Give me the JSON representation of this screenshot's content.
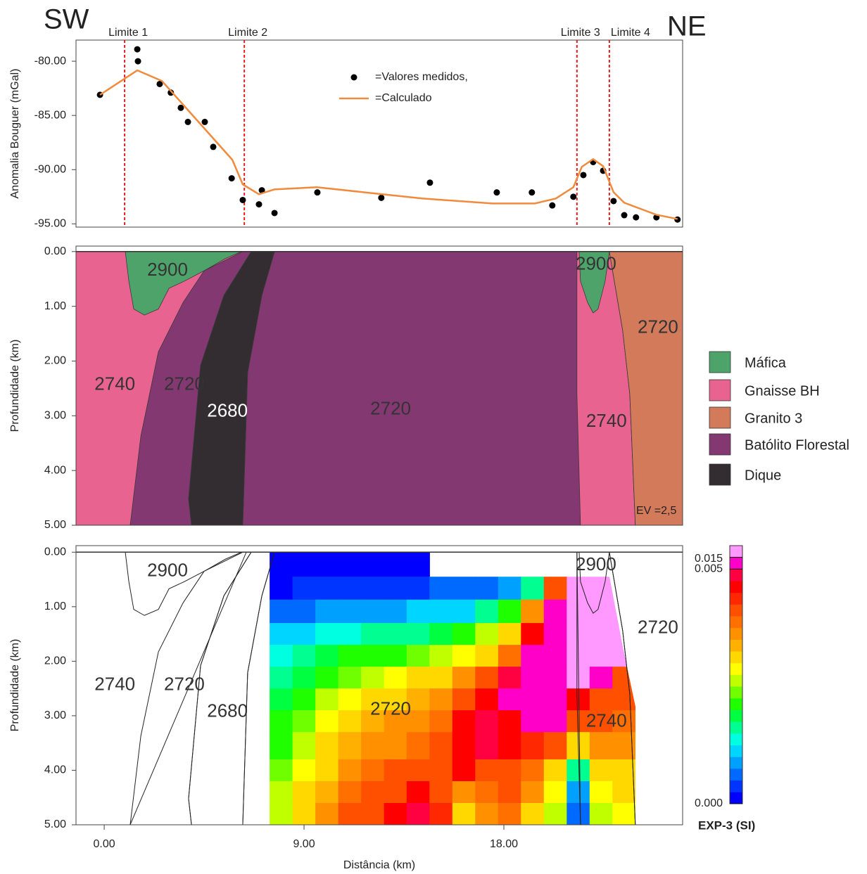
{
  "chart_data": [
    {
      "type": "line",
      "left_label": "SW",
      "right_label": "NE",
      "ylabel": "Anomalia Bouguer (mGal)",
      "xlim": [
        -1.27,
        26.05
      ],
      "ylim": [
        -95.3,
        -78.05
      ],
      "yticks": [
        {
          "value": -80,
          "label": "-80.00"
        },
        {
          "value": -85,
          "label": "-85.00"
        },
        {
          "value": -90,
          "label": "-90.00"
        },
        {
          "value": -95,
          "label": "-95.00"
        }
      ],
      "limits": [
        {
          "label": "Limite 1",
          "x": 0.92
        },
        {
          "label": "Limite 2",
          "x": 6.31
        },
        {
          "label": "Limite 3",
          "x": 21.29
        },
        {
          "label": "Limite 4",
          "x": 22.75
        }
      ],
      "limit_color": "#e0201f",
      "series": [
        {
          "name": "=Valores medidos,",
          "color": "#000000",
          "style": "points",
          "x": [
            -0.19,
            1.49,
            1.52,
            2.5,
            3.0,
            3.45,
            3.77,
            4.53,
            4.91,
            5.74,
            6.24,
            6.97,
            7.1,
            7.67,
            9.6,
            12.48,
            14.67,
            17.68,
            19.26,
            20.18,
            21.13,
            21.58,
            22.02,
            22.47,
            22.94,
            23.42,
            23.95,
            24.87,
            25.82
          ],
          "values": [
            -83.1,
            -78.9,
            -80.0,
            -82.1,
            -82.9,
            -84.3,
            -85.6,
            -85.6,
            -87.9,
            -90.8,
            -92.8,
            -93.2,
            -91.9,
            -94.0,
            -92.1,
            -92.6,
            -91.2,
            -92.1,
            -92.1,
            -93.3,
            -92.5,
            -90.5,
            -89.3,
            -90.1,
            -92.9,
            -94.2,
            -94.4,
            -94.4,
            -94.6
          ]
        },
        {
          "name": "=Calculado",
          "color": "#f08a3c",
          "style": "line",
          "x": [
            -0.19,
            1.49,
            2.6,
            5.77,
            6.24,
            6.97,
            7.67,
            9.57,
            14.32,
            17.49,
            19.39,
            20.34,
            21.13,
            21.51,
            22.02,
            22.47,
            22.94,
            23.42,
            24.87,
            25.82
          ],
          "values": [
            -83.1,
            -80.84,
            -81.82,
            -89.09,
            -91.36,
            -92.27,
            -91.82,
            -91.62,
            -92.66,
            -93.12,
            -93.12,
            -92.66,
            -91.62,
            -89.74,
            -89.03,
            -89.68,
            -92.08,
            -93.05,
            -94.16,
            -94.55
          ]
        }
      ]
    },
    {
      "type": "section",
      "ylabel": "Profundidade (km)",
      "xlim": [
        -1.27,
        26.05
      ],
      "ylim": [
        -0.1,
        5
      ],
      "y_inverted": true,
      "zero_line": true,
      "yticks": [
        {
          "value": 0,
          "label": "0.00"
        },
        {
          "value": 1,
          "label": "1.00"
        },
        {
          "value": 2,
          "label": "2.00"
        },
        {
          "value": 3,
          "label": "3.00"
        },
        {
          "value": 4,
          "label": "4.00"
        },
        {
          "value": 5,
          "label": "5.00"
        }
      ],
      "note": "EV =2,5",
      "units": [
        {
          "name": "Máfica",
          "color": "#4ea36a"
        },
        {
          "name": "Gnaisse BH",
          "color": "#e8638f"
        },
        {
          "name": "Granito 3",
          "color": "#d27a5a"
        },
        {
          "name": "Batólito Florestal",
          "color": "#843872"
        },
        {
          "name": "Dique",
          "color": "#332d31"
        }
      ],
      "bodies": [
        {
          "density": 2740,
          "color": "#e8638f",
          "x": [
            -1.27,
            6.4,
            1.17,
            -1.27
          ],
          "depth": [
            0,
            0,
            5,
            5
          ]
        },
        {
          "density": 2720,
          "color": "#843872",
          "x": [
            4.5,
            6.24,
            6.62,
            5.39,
            4.34,
            3.8,
            3.93,
            1.17,
            1.65,
            2.44,
            3.55
          ],
          "depth": [
            0.35,
            0,
            0,
            0.8,
            2.08,
            4.52,
            5,
            5,
            3.37,
            1.83,
            0.93
          ]
        },
        {
          "density": 2720,
          "color": "#843872",
          "x": [
            7.67,
            21.29,
            21.45,
            6.24,
            6.46,
            7.1
          ],
          "depth": [
            0,
            0,
            5,
            5,
            2.21,
            0.8
          ]
        },
        {
          "density": 2680,
          "color": "#332d31",
          "x": [
            6.62,
            7.67,
            7.1,
            6.46,
            6.24,
            3.93,
            3.8,
            4.34,
            5.39
          ],
          "depth": [
            0,
            0,
            0.8,
            2.21,
            5,
            5,
            4.52,
            2.08,
            0.8
          ]
        },
        {
          "density": 2900,
          "color": "#4ea36a",
          "x": [
            0.95,
            6.18,
            5.45,
            4.5,
            3.61,
            2.92,
            2.44,
            1.81,
            1.33,
            1.11
          ],
          "depth": [
            0,
            0,
            0.13,
            0.35,
            0.54,
            0.67,
            1.05,
            1.16,
            1.05,
            0.54
          ]
        },
        {
          "density": 2740,
          "color": "#e8638f",
          "x": [
            21.29,
            22.75,
            23.35,
            23.67,
            23.92,
            21.45,
            21.29
          ],
          "depth": [
            0,
            0,
            1.44,
            2.6,
            5,
            5,
            2.6
          ]
        },
        {
          "density": 2720,
          "color": "#d27a5a",
          "x": [
            22.75,
            26.05,
            26.05,
            23.92,
            23.67,
            23.35
          ],
          "depth": [
            0,
            0,
            5,
            5,
            2.6,
            1.44
          ]
        },
        {
          "density": 2900,
          "color": "#4ea36a",
          "x": [
            21.39,
            22.75,
            22.56,
            22.24,
            22.02,
            21.77,
            21.45
          ],
          "depth": [
            0,
            0,
            0.54,
            1.05,
            1.12,
            0.93,
            0.54
          ]
        }
      ]
    },
    {
      "type": "heatmap",
      "ylabel": "Profundidade (km)",
      "xlabel": "Distância (km)",
      "xlim": [
        -1.27,
        26.05
      ],
      "ylim": [
        -0.12,
        5
      ],
      "y_inverted": true,
      "zero_line": true,
      "xticks": [
        {
          "value": 0,
          "label": "0.00"
        },
        {
          "value": 9,
          "label": "9.00"
        },
        {
          "value": 18,
          "label": "18.00"
        }
      ],
      "yticks": [
        {
          "value": 0,
          "label": "0.00"
        },
        {
          "value": 1,
          "label": "1.00"
        },
        {
          "value": 2,
          "label": "2.00"
        },
        {
          "value": 3,
          "label": "3.00"
        },
        {
          "value": 4,
          "label": "4.00"
        },
        {
          "value": 5,
          "label": "5.00"
        }
      ],
      "grid_x": [
        7.45,
        8.48,
        9.51,
        10.54,
        11.57,
        12.6,
        13.62,
        14.65,
        15.68,
        16.71,
        17.74,
        18.77,
        19.8,
        20.83,
        21.86,
        22.89,
        23.92
      ],
      "grid_depths": [
        0,
        0.45,
        0.87,
        1.3,
        1.7,
        2.1,
        2.5,
        2.9,
        3.3,
        3.8,
        4.2,
        4.6,
        5.0
      ],
      "values": [
        [
          0.0001,
          0.0001,
          0.0001,
          0.0001,
          0.0001,
          0.0001,
          0.0001,
          null,
          null,
          null,
          null,
          null,
          null,
          null,
          null,
          null
        ],
        [
          0.0002,
          0.0003,
          0.0003,
          0.0003,
          0.0004,
          0.0004,
          0.0004,
          0.0005,
          0.0005,
          0.0005,
          0.0008,
          0.0015,
          0.004,
          0.015,
          0.017,
          0.017
        ],
        [
          0.0006,
          0.0007,
          0.0008,
          0.0008,
          0.0009,
          0.0009,
          0.001,
          0.001,
          0.0012,
          0.0015,
          0.002,
          0.0035,
          0.01,
          0.017,
          0.017,
          0.017
        ],
        [
          0.001,
          0.0012,
          0.0013,
          0.0014,
          0.0015,
          0.0015,
          0.0016,
          0.0018,
          0.0022,
          0.0025,
          0.003,
          0.0045,
          0.01,
          0.017,
          0.017,
          0.017
        ],
        [
          0.0013,
          0.0015,
          0.0018,
          0.002,
          0.002,
          0.0022,
          0.0024,
          0.0026,
          0.0028,
          0.0032,
          0.0038,
          0.005,
          0.01,
          0.017,
          0.017,
          0.017
        ],
        [
          0.0016,
          0.0018,
          0.0022,
          0.0024,
          0.0026,
          0.0028,
          0.003,
          0.0032,
          0.0035,
          0.0042,
          0.0048,
          0.01,
          0.01,
          0.017,
          0.01,
          0.004
        ],
        [
          0.0018,
          0.0022,
          0.0026,
          0.0029,
          0.003,
          0.0032,
          0.0033,
          0.0035,
          0.004,
          0.0046,
          0.01,
          0.01,
          0.01,
          0.0046,
          0.0042,
          0.004
        ],
        [
          0.002,
          0.0024,
          0.0028,
          0.0032,
          0.0033,
          0.0035,
          0.0036,
          0.0038,
          0.0045,
          0.0048,
          0.0046,
          0.01,
          0.01,
          0.0042,
          0.004,
          0.0038
        ],
        [
          0.0022,
          0.0026,
          0.003,
          0.0034,
          0.0035,
          0.0037,
          0.0038,
          0.004,
          0.0047,
          0.0048,
          0.0045,
          0.0044,
          0.004,
          0.003,
          0.0035,
          0.0036
        ],
        [
          0.0024,
          0.0028,
          0.0032,
          0.0036,
          0.0038,
          0.004,
          0.0042,
          0.004,
          0.0045,
          0.004,
          0.0042,
          0.0038,
          0.003,
          0.0015,
          0.003,
          0.003
        ],
        [
          0.0025,
          0.003,
          0.0034,
          0.0038,
          0.004,
          0.0042,
          0.0046,
          0.0042,
          0.0036,
          0.0038,
          0.004,
          0.0035,
          0.0028,
          0.0008,
          0.0028,
          0.003
        ],
        [
          0.0026,
          0.0032,
          0.0036,
          0.004,
          0.0042,
          0.0045,
          0.0048,
          0.0044,
          0.003,
          0.0035,
          0.0038,
          0.0032,
          0.0026,
          0.0005,
          0.0025,
          0.0028
        ]
      ],
      "colorbar": {
        "title": "EXP-3 (SI)",
        "levels": [
          0,
          0.00025,
          0.0005,
          0.00075,
          0.001,
          0.00125,
          0.0015,
          0.00175,
          0.002,
          0.00225,
          0.0025,
          0.00275,
          0.003,
          0.00325,
          0.0035,
          0.00375,
          0.004,
          0.00425,
          0.0045,
          0.00475,
          0.005,
          0.015,
          0.02
        ],
        "colors": [
          "#0000ff",
          "#0035ff",
          "#006aff",
          "#00a0ff",
          "#00d5ff",
          "#00ffe0",
          "#00ff90",
          "#00ff40",
          "#20ff00",
          "#70ff00",
          "#c0ff00",
          "#ffff00",
          "#ffd800",
          "#ffb000",
          "#ff9000",
          "#ff7000",
          "#ff5000",
          "#ff2800",
          "#ff0000",
          "#ff0040",
          "#ff00c8",
          "#ff99ff"
        ],
        "ticks": [
          0.015,
          0.005,
          {
            "value": 0,
            "label": "0.000"
          }
        ]
      }
    }
  ]
}
